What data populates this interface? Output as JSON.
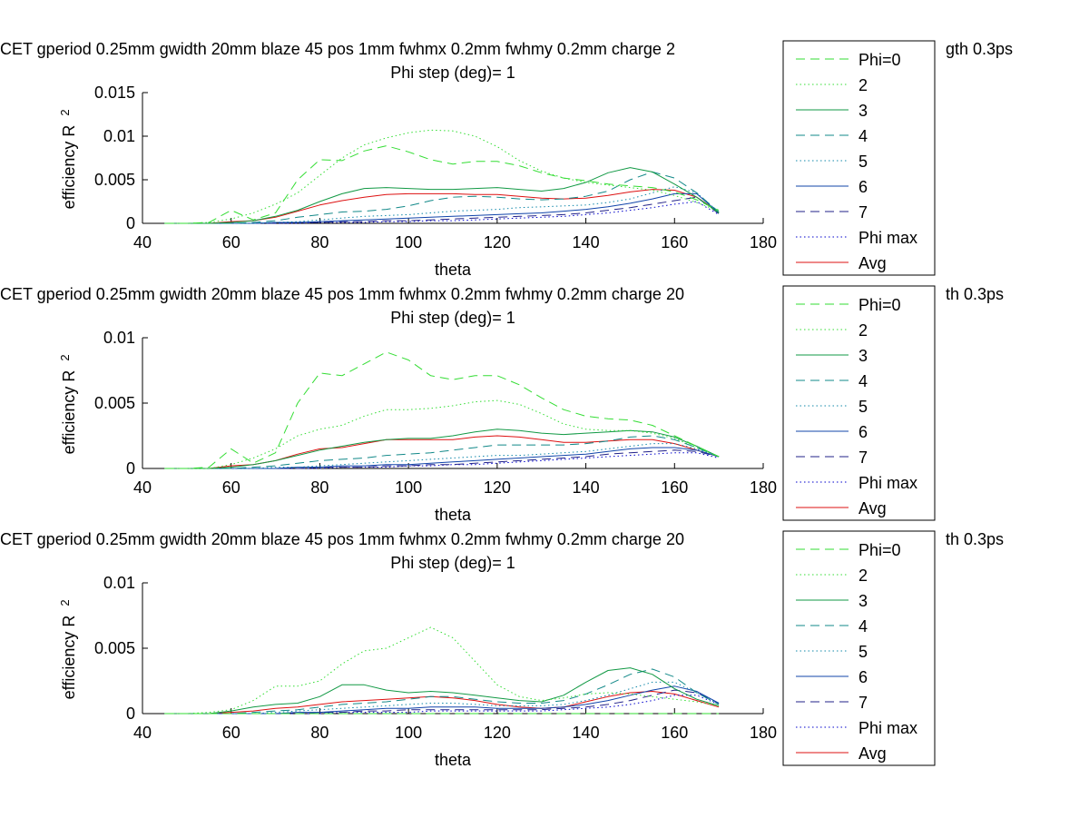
{
  "figure": {
    "background": "#ffffff"
  },
  "legend_style": [
    {
      "color": "#33dd33",
      "dash": "10,6"
    },
    {
      "color": "#33dd33",
      "dash": "1.5,3"
    },
    {
      "color": "#119944",
      "dash": ""
    },
    {
      "color": "#118888",
      "dash": "10,6"
    },
    {
      "color": "#1188aa",
      "dash": "1.5,3"
    },
    {
      "color": "#1144aa",
      "dash": ""
    },
    {
      "color": "#222288",
      "dash": "10,6"
    },
    {
      "color": "#0000cc",
      "dash": "1.5,3"
    },
    {
      "color": "#dd1111",
      "dash": ""
    }
  ],
  "chart_data": [
    {
      "type": "line",
      "title_line1": "CET gperiod 0.25mm gwidth 20mm blaze 45 pos 1mm fwhmx 0.2mm fwhmy 0.2mm charge 2",
      "title_line1_tail": "gth 0.3ps",
      "title_line2": "Phi step (deg)= 1",
      "xlabel": "theta",
      "ylabel": "efficiency R",
      "ylabel_sup": "2",
      "xlim": [
        40,
        180
      ],
      "ylim": [
        0,
        0.015
      ],
      "xticks": [
        "40",
        "60",
        "80",
        "100",
        "120",
        "140",
        "160",
        "180"
      ],
      "yticks": [
        "0",
        "0.005",
        "0.01",
        "0.015"
      ],
      "legend": [
        "Phi=0",
        "2",
        "3",
        "4",
        "5",
        "6",
        "7",
        "Phi max",
        "Avg"
      ],
      "x": [
        45,
        50,
        55,
        60,
        65,
        70,
        75,
        80,
        85,
        90,
        95,
        100,
        105,
        110,
        115,
        120,
        125,
        130,
        135,
        140,
        145,
        150,
        155,
        160,
        165,
        170
      ],
      "series": [
        {
          "name": "Phi=0",
          "values": [
            0,
            0,
            0.0001,
            0.0015,
            0.0004,
            0.0012,
            0.005,
            0.0073,
            0.0072,
            0.0083,
            0.0089,
            0.0082,
            0.0073,
            0.0068,
            0.0071,
            0.0071,
            0.0066,
            0.0058,
            0.0052,
            0.0049,
            0.0045,
            0.0043,
            0.0041,
            0.0036,
            0.0027,
            0.0015
          ]
        },
        {
          "name": "2",
          "values": [
            0,
            0,
            0.0001,
            0.0005,
            0.0012,
            0.0022,
            0.0035,
            0.0055,
            0.0075,
            0.009,
            0.0098,
            0.0104,
            0.0107,
            0.0106,
            0.01,
            0.0088,
            0.0072,
            0.006,
            0.0052,
            0.0047,
            0.0044,
            0.0041,
            0.0038,
            0.0032,
            0.0024,
            0.0014
          ]
        },
        {
          "name": "3",
          "values": [
            0,
            0,
            0,
            0.0001,
            0.0003,
            0.0008,
            0.0015,
            0.0025,
            0.0034,
            0.004,
            0.0041,
            0.004,
            0.0039,
            0.0039,
            0.004,
            0.0041,
            0.0039,
            0.0037,
            0.004,
            0.0047,
            0.0058,
            0.0064,
            0.0059,
            0.0045,
            0.003,
            0.0012
          ]
        },
        {
          "name": "4",
          "values": [
            0,
            0,
            0,
            0,
            0.0001,
            0.0003,
            0.0007,
            0.001,
            0.0013,
            0.0014,
            0.0016,
            0.002,
            0.0026,
            0.003,
            0.0031,
            0.003,
            0.0028,
            0.0027,
            0.0028,
            0.0031,
            0.0037,
            0.005,
            0.0059,
            0.0052,
            0.0035,
            0.0013
          ]
        },
        {
          "name": "5",
          "values": [
            0,
            0,
            0,
            0,
            0,
            0.0001,
            0.0002,
            0.0004,
            0.0006,
            0.0008,
            0.0009,
            0.001,
            0.0012,
            0.0014,
            0.0015,
            0.0016,
            0.0018,
            0.0019,
            0.002,
            0.0021,
            0.0024,
            0.0028,
            0.0035,
            0.0042,
            0.0035,
            0.0013
          ]
        },
        {
          "name": "6",
          "values": [
            0,
            0,
            0,
            0,
            0,
            0.0001,
            0.0001,
            0.0002,
            0.0003,
            0.0004,
            0.0005,
            0.0006,
            0.0007,
            0.0008,
            0.0009,
            0.001,
            0.0011,
            0.0012,
            0.0014,
            0.0016,
            0.0019,
            0.0023,
            0.0028,
            0.0034,
            0.0034,
            0.0012
          ]
        },
        {
          "name": "7",
          "values": [
            0,
            0,
            0,
            0,
            0,
            0,
            0.0001,
            0.0001,
            0.0002,
            0.0002,
            0.0003,
            0.0003,
            0.0004,
            0.0005,
            0.0006,
            0.0007,
            0.0008,
            0.0009,
            0.001,
            0.0012,
            0.0015,
            0.0018,
            0.0022,
            0.0026,
            0.003,
            0.0011
          ]
        },
        {
          "name": "Phi max",
          "values": [
            0,
            0,
            0,
            0,
            0,
            0,
            0,
            0.0001,
            0.0001,
            0.0001,
            0.0002,
            0.0002,
            0.0003,
            0.0003,
            0.0004,
            0.0005,
            0.0006,
            0.0007,
            0.0008,
            0.001,
            0.0012,
            0.0015,
            0.0018,
            0.0022,
            0.0025,
            0.001
          ]
        },
        {
          "name": "Avg",
          "values": [
            0,
            0,
            0,
            0.0002,
            0.0003,
            0.0007,
            0.0014,
            0.0021,
            0.0026,
            0.003,
            0.0033,
            0.0034,
            0.0034,
            0.0034,
            0.0033,
            0.0033,
            0.0031,
            0.0029,
            0.0028,
            0.0029,
            0.0032,
            0.0036,
            0.0039,
            0.0038,
            0.003,
            0.0013
          ]
        }
      ]
    },
    {
      "type": "line",
      "title_line1": "CET gperiod 0.25mm gwidth 20mm blaze 45 pos 1mm fwhmx 0.2mm fwhmy 0.2mm charge 20",
      "title_line1_tail": "th 0.3ps",
      "title_line2": "Phi step (deg)= 1",
      "xlabel": "theta",
      "ylabel": "efficiency R",
      "ylabel_sup": "2",
      "xlim": [
        40,
        180
      ],
      "ylim": [
        0,
        0.01
      ],
      "xticks": [
        "40",
        "60",
        "80",
        "100",
        "120",
        "140",
        "160",
        "180"
      ],
      "yticks": [
        "0",
        "0.005",
        "0.01"
      ],
      "legend": [
        "Phi=0",
        "2",
        "3",
        "4",
        "5",
        "6",
        "7",
        "Phi max",
        "Avg"
      ],
      "x": [
        45,
        50,
        55,
        60,
        65,
        70,
        75,
        80,
        85,
        90,
        95,
        100,
        105,
        110,
        115,
        120,
        125,
        130,
        135,
        140,
        145,
        150,
        155,
        160,
        165,
        170
      ],
      "series": [
        {
          "name": "Phi=0",
          "values": [
            0,
            0,
            0.0001,
            0.0015,
            0.0004,
            0.0012,
            0.005,
            0.0073,
            0.0071,
            0.008,
            0.0089,
            0.0083,
            0.0071,
            0.0068,
            0.0071,
            0.0071,
            0.0064,
            0.0054,
            0.0045,
            0.004,
            0.0038,
            0.0037,
            0.0033,
            0.0025,
            0.0017,
            0.0009
          ]
        },
        {
          "name": "2",
          "values": [
            0,
            0,
            0,
            0.0003,
            0.0008,
            0.0015,
            0.0025,
            0.003,
            0.0033,
            0.004,
            0.0045,
            0.0045,
            0.0046,
            0.0048,
            0.0051,
            0.0052,
            0.0049,
            0.0042,
            0.0034,
            0.003,
            0.0029,
            0.0029,
            0.0027,
            0.0023,
            0.0016,
            0.0009
          ]
        },
        {
          "name": "3",
          "values": [
            0,
            0,
            0,
            0.0001,
            0.0003,
            0.0006,
            0.001,
            0.0014,
            0.0017,
            0.002,
            0.0022,
            0.0023,
            0.0023,
            0.0025,
            0.0028,
            0.003,
            0.0029,
            0.0027,
            0.0026,
            0.0027,
            0.0028,
            0.0029,
            0.0028,
            0.0024,
            0.0017,
            0.0009
          ]
        },
        {
          "name": "4",
          "values": [
            0,
            0,
            0,
            0,
            0.0001,
            0.0002,
            0.0004,
            0.0006,
            0.0007,
            0.0008,
            0.001,
            0.0011,
            0.0012,
            0.0014,
            0.0016,
            0.0018,
            0.0018,
            0.0018,
            0.0018,
            0.0019,
            0.0021,
            0.0024,
            0.0025,
            0.0022,
            0.0016,
            0.0009
          ]
        },
        {
          "name": "5",
          "values": [
            0,
            0,
            0,
            0,
            0,
            0.0001,
            0.0001,
            0.0002,
            0.0003,
            0.0004,
            0.0005,
            0.0006,
            0.0007,
            0.0008,
            0.0009,
            0.001,
            0.001,
            0.0011,
            0.0012,
            0.0013,
            0.0015,
            0.0017,
            0.0019,
            0.0019,
            0.0015,
            0.0009
          ]
        },
        {
          "name": "6",
          "values": [
            0,
            0,
            0,
            0,
            0,
            0,
            0.0001,
            0.0001,
            0.0002,
            0.0002,
            0.0003,
            0.0003,
            0.0004,
            0.0005,
            0.0006,
            0.0007,
            0.0008,
            0.0009,
            0.001,
            0.0011,
            0.0013,
            0.0015,
            0.0016,
            0.0016,
            0.0014,
            0.0009
          ]
        },
        {
          "name": "7",
          "values": [
            0,
            0,
            0,
            0,
            0,
            0,
            0,
            0.0001,
            0.0001,
            0.0001,
            0.0002,
            0.0002,
            0.0003,
            0.0003,
            0.0004,
            0.0005,
            0.0006,
            0.0007,
            0.0008,
            0.0009,
            0.0011,
            0.0012,
            0.0013,
            0.0014,
            0.0013,
            0.0009
          ]
        },
        {
          "name": "Phi max",
          "values": [
            0,
            0,
            0,
            0,
            0,
            0,
            0,
            0,
            0.0001,
            0.0001,
            0.0001,
            0.0002,
            0.0002,
            0.0003,
            0.0003,
            0.0004,
            0.0005,
            0.0006,
            0.0007,
            0.0008,
            0.0009,
            0.001,
            0.0011,
            0.0012,
            0.0012,
            0.0008
          ]
        },
        {
          "name": "Avg",
          "values": [
            0,
            0,
            0,
            0.0002,
            0.0003,
            0.0006,
            0.0011,
            0.0015,
            0.0016,
            0.0019,
            0.0022,
            0.0022,
            0.0022,
            0.0022,
            0.0024,
            0.0025,
            0.0024,
            0.0022,
            0.002,
            0.002,
            0.0021,
            0.0022,
            0.0022,
            0.0019,
            0.0014,
            0.0009
          ]
        }
      ]
    },
    {
      "type": "line",
      "title_line1": "CET gperiod 0.25mm gwidth 20mm blaze 45 pos 1mm fwhmx 0.2mm fwhmy 0.2mm charge 20",
      "title_line1_tail": "th 0.3ps",
      "title_line2": "Phi step (deg)= 1",
      "xlabel": "theta",
      "ylabel": "efficiency R",
      "ylabel_sup": "2",
      "xlim": [
        40,
        180
      ],
      "ylim": [
        0,
        0.01
      ],
      "xticks": [
        "40",
        "60",
        "80",
        "100",
        "120",
        "140",
        "160",
        "180"
      ],
      "yticks": [
        "0",
        "0.005",
        "0.01"
      ],
      "legend": [
        "Phi=0",
        "2",
        "3",
        "4",
        "5",
        "6",
        "7",
        "Phi max",
        "Avg"
      ],
      "x": [
        45,
        50,
        55,
        60,
        65,
        70,
        75,
        80,
        85,
        90,
        95,
        100,
        105,
        110,
        115,
        120,
        125,
        130,
        135,
        140,
        145,
        150,
        155,
        160,
        165,
        170
      ],
      "series": [
        {
          "name": "Phi=0",
          "values": [
            0,
            0,
            0,
            0,
            0,
            0,
            0,
            0,
            0,
            0,
            0,
            0,
            0,
            0,
            0,
            0,
            0,
            0,
            0,
            0,
            0,
            0,
            0,
            0,
            0,
            0
          ]
        },
        {
          "name": "2",
          "values": [
            0,
            0,
            0.0001,
            0.0003,
            0.001,
            0.0021,
            0.0021,
            0.0025,
            0.0038,
            0.0048,
            0.005,
            0.0058,
            0.0066,
            0.0058,
            0.004,
            0.0022,
            0.0013,
            0.001,
            0.0012,
            0.0015,
            0.0016,
            0.0015,
            0.0013,
            0.0011,
            0.0009,
            0.0006
          ]
        },
        {
          "name": "3",
          "values": [
            0,
            0,
            0,
            0.0002,
            0.0005,
            0.0007,
            0.0008,
            0.0013,
            0.0022,
            0.0022,
            0.0018,
            0.0016,
            0.0017,
            0.0016,
            0.0014,
            0.0012,
            0.001,
            0.0009,
            0.0014,
            0.0024,
            0.0033,
            0.0035,
            0.003,
            0.0019,
            0.0011,
            0.0006
          ]
        },
        {
          "name": "4",
          "values": [
            0,
            0,
            0,
            0,
            0.0001,
            0.0002,
            0.0003,
            0.0005,
            0.0007,
            0.0008,
            0.0009,
            0.0011,
            0.0013,
            0.0013,
            0.0011,
            0.0009,
            0.0008,
            0.0008,
            0.001,
            0.0015,
            0.0022,
            0.003,
            0.0034,
            0.0028,
            0.0016,
            0.0007
          ]
        },
        {
          "name": "5",
          "values": [
            0,
            0,
            0,
            0,
            0,
            0.0001,
            0.0002,
            0.0003,
            0.0004,
            0.0005,
            0.0006,
            0.0007,
            0.0008,
            0.0008,
            0.0007,
            0.0006,
            0.0006,
            0.0006,
            0.0007,
            0.001,
            0.0014,
            0.0019,
            0.0024,
            0.0024,
            0.0016,
            0.0007
          ]
        },
        {
          "name": "6",
          "values": [
            0,
            0,
            0,
            0,
            0,
            0,
            0.0001,
            0.0001,
            0.0002,
            0.0003,
            0.0004,
            0.0004,
            0.0005,
            0.0005,
            0.0005,
            0.0004,
            0.0004,
            0.0004,
            0.0005,
            0.0007,
            0.001,
            0.0014,
            0.0018,
            0.0021,
            0.0017,
            0.0008
          ]
        },
        {
          "name": "7",
          "values": [
            0,
            0,
            0,
            0,
            0,
            0,
            0,
            0.0001,
            0.0001,
            0.0002,
            0.0002,
            0.0003,
            0.0003,
            0.0003,
            0.0003,
            0.0003,
            0.0003,
            0.0003,
            0.0004,
            0.0005,
            0.0007,
            0.001,
            0.0014,
            0.0018,
            0.0016,
            0.0008
          ]
        },
        {
          "name": "Phi max",
          "values": [
            0,
            0,
            0,
            0,
            0,
            0,
            0,
            0,
            0.0001,
            0.0001,
            0.0001,
            0.0001,
            0.0002,
            0.0002,
            0.0002,
            0.0002,
            0.0002,
            0.0002,
            0.0003,
            0.0004,
            0.0005,
            0.0007,
            0.001,
            0.0014,
            0.0014,
            0.0007
          ]
        },
        {
          "name": "Avg",
          "values": [
            0,
            0,
            0,
            0.0001,
            0.0002,
            0.0004,
            0.0005,
            0.0007,
            0.0009,
            0.001,
            0.0011,
            0.0012,
            0.0013,
            0.0012,
            0.001,
            0.0007,
            0.0005,
            0.0004,
            0.0005,
            0.0009,
            0.0013,
            0.0016,
            0.0017,
            0.0015,
            0.001,
            0.0005
          ]
        }
      ]
    }
  ]
}
